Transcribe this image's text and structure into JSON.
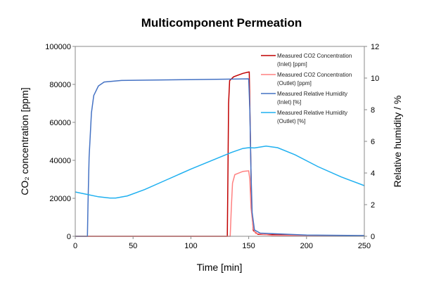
{
  "chart_data": {
    "type": "line",
    "title": "Multicomponent Permeation",
    "xlabel": "Time [min]",
    "ylabel": "CO₂ concentration [ppm]",
    "y2label": "Relative humidity / %",
    "xlim": [
      0,
      250
    ],
    "ylim": [
      0,
      100000
    ],
    "y2lim": [
      0,
      12
    ],
    "xticks": [
      "0",
      "50",
      "100",
      "150",
      "200",
      "250"
    ],
    "yticks": [
      "0",
      "20000",
      "40000",
      "60000",
      "80000",
      "100000"
    ],
    "y2ticks": [
      "0",
      "2",
      "4",
      "6",
      "8",
      "10",
      "12"
    ],
    "grid": false,
    "legend_position": "top-right",
    "series": [
      {
        "name": "Measured CO2 Concentration (Inlet) [ppm]",
        "legend_lines": [
          "Measured CO2 Concentration",
          "(Inlet) [ppm]"
        ],
        "axis": "left",
        "color": "#c00000",
        "points": [
          [
            0,
            0
          ],
          [
            131.5,
            0
          ],
          [
            132,
            30000
          ],
          [
            132.6,
            70000
          ],
          [
            133.5,
            82000
          ],
          [
            137,
            84000
          ],
          [
            145,
            85800
          ],
          [
            150,
            86500
          ],
          [
            150.5,
            86500
          ],
          [
            151.5,
            50000
          ],
          [
            152.5,
            15000
          ],
          [
            154,
            3000
          ],
          [
            158,
            1000
          ],
          [
            200,
            400
          ],
          [
            250,
            200
          ]
        ]
      },
      {
        "name": "Measured CO2 Concentration (Outlet) [ppm]",
        "legend_lines": [
          "Measured CO2 Concentration",
          "(Outlet) [ppm]"
        ],
        "axis": "left",
        "color": "#ff8080",
        "points": [
          [
            0,
            0
          ],
          [
            134,
            0
          ],
          [
            135,
            15000
          ],
          [
            136,
            28000
          ],
          [
            138,
            32500
          ],
          [
            145,
            34200
          ],
          [
            150,
            34500
          ],
          [
            151,
            30000
          ],
          [
            152,
            15000
          ],
          [
            154,
            4000
          ],
          [
            156,
            1500
          ],
          [
            170,
            500
          ],
          [
            250,
            200
          ]
        ]
      },
      {
        "name": "Measured Relative Humidity (Inlet) [%]",
        "legend_lines": [
          "Measured Relative Humidity",
          "(Inlet) [%]"
        ],
        "axis": "right",
        "color": "#4472c4",
        "points": [
          [
            0,
            0
          ],
          [
            10.5,
            0
          ],
          [
            11,
            2
          ],
          [
            12,
            5
          ],
          [
            14,
            7.8
          ],
          [
            16,
            8.9
          ],
          [
            20,
            9.5
          ],
          [
            25,
            9.75
          ],
          [
            40,
            9.85
          ],
          [
            100,
            9.9
          ],
          [
            150,
            9.95
          ],
          [
            151,
            8
          ],
          [
            152,
            4
          ],
          [
            153,
            1.5
          ],
          [
            155,
            0.4
          ],
          [
            160,
            0.2
          ],
          [
            200,
            0.08
          ],
          [
            250,
            0.05
          ]
        ]
      },
      {
        "name": "Measured Relative Humidity (Outlet) [%]",
        "legend_lines": [
          "Measured Relative Humidity",
          "(Outlet) [%]"
        ],
        "axis": "right",
        "color": "#1fb0f0",
        "points": [
          [
            0,
            2.8
          ],
          [
            10,
            2.65
          ],
          [
            20,
            2.5
          ],
          [
            30,
            2.42
          ],
          [
            35,
            2.42
          ],
          [
            45,
            2.55
          ],
          [
            60,
            2.95
          ],
          [
            80,
            3.6
          ],
          [
            100,
            4.25
          ],
          [
            120,
            4.85
          ],
          [
            135,
            5.3
          ],
          [
            145,
            5.55
          ],
          [
            150,
            5.6
          ],
          [
            155,
            5.58
          ],
          [
            165,
            5.7
          ],
          [
            175,
            5.6
          ],
          [
            190,
            5.15
          ],
          [
            210,
            4.4
          ],
          [
            230,
            3.75
          ],
          [
            250,
            3.2
          ]
        ]
      }
    ]
  }
}
